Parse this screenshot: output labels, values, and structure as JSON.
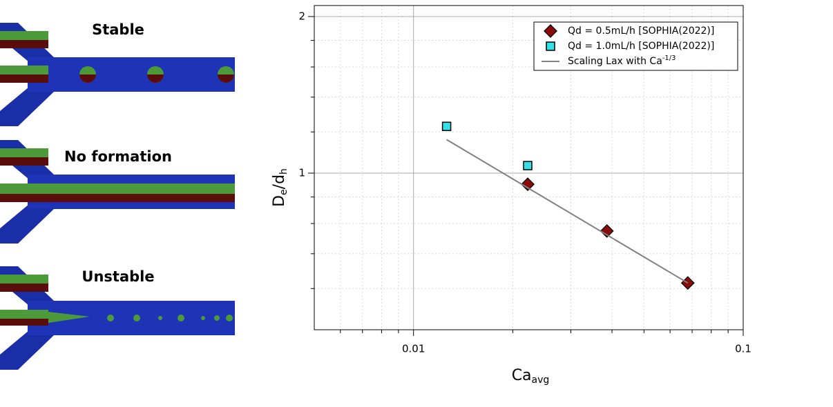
{
  "panels": [
    "Stable",
    "No formation",
    "Unstable"
  ],
  "chart_data": {
    "type": "scatter",
    "xlabel": [
      {
        "text": "Ca"
      },
      {
        "text": "avg",
        "sub": true
      }
    ],
    "ylabel": [
      {
        "text": "D"
      },
      {
        "text": "e",
        "sub": true
      },
      {
        "text": "/d"
      },
      {
        "text": "h",
        "sub": true
      }
    ],
    "xscale": "log",
    "yscale": "log",
    "xlim": [
      0.005,
      0.1
    ],
    "ylim": [
      0.5,
      2.1
    ],
    "xticks": [
      0.01,
      0.1
    ],
    "yticks": [
      1,
      2
    ],
    "xminorticks": [
      0.006,
      0.007,
      0.008,
      0.009,
      0.02,
      0.03,
      0.04,
      0.05,
      0.06,
      0.07,
      0.08,
      0.09
    ],
    "yminorticks": [
      0.6,
      0.7,
      0.8,
      0.9,
      1.2,
      1.4,
      1.6,
      1.8
    ],
    "grid": true,
    "legend": "upper right",
    "series": [
      {
        "name": "Qd = 0.5mL/h [SOPHIA(2022)]",
        "marker": "diamond",
        "color": "#8b0a0a",
        "x": [
          0.0222,
          0.0386,
          0.0679
        ],
        "values": [
          0.952,
          0.774,
          0.615
        ]
      },
      {
        "name": "Qd = 1.0mL/h [SOPHIA(2022)]",
        "marker": "square",
        "color": "#33e0e8",
        "x": [
          0.0126,
          0.0222
        ],
        "values": [
          1.23,
          1.034
        ]
      },
      {
        "name": "Scaling Lax with Ca",
        "name_sup": "-1/3",
        "marker": "line",
        "color": "#808080",
        "x": [
          0.0126,
          0.0679
        ],
        "values": [
          1.16,
          0.615
        ]
      }
    ]
  }
}
